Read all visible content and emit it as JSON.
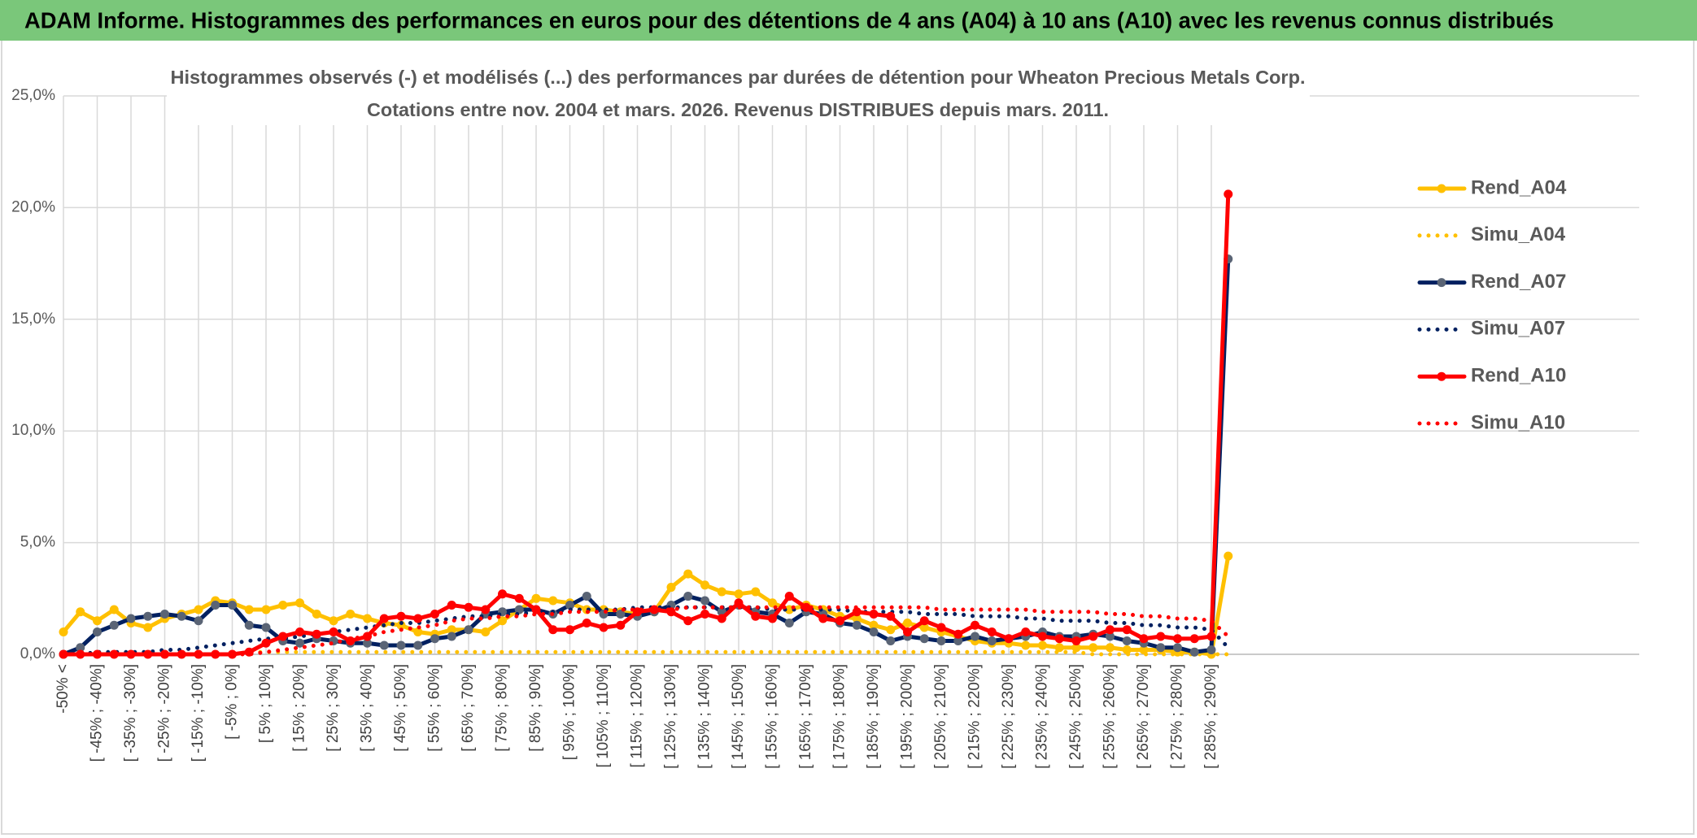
{
  "chart_data": {
    "type": "line",
    "title": "ADAM Informe. Histogrammes des performances en euros pour des détentions de 4 ans (A04) à 10 ans (A10) avec les revenus connus distribués",
    "subtitle": [
      "Histogrammes observés (-) et modélisés (...) des performances par durées de détention pour Wheaton Precious Metals Corp.",
      "Cotations entre nov. 2004 et mars. 2026. Revenus DISTRIBUES depuis mars. 2011."
    ],
    "categories": [
      "-50% <",
      null,
      "[ -45% ; -40%]",
      null,
      "[ -35% ; -30%]",
      null,
      "[ -25% ; -20%]",
      null,
      "[ -15% ; -10%]",
      null,
      "[ -5% ; 0%]",
      null,
      "[ 5% ; 10%]",
      null,
      "[ 15% ; 20%]",
      null,
      "[ 25% ; 30%]",
      null,
      "[ 35% ; 40%]",
      null,
      "[ 45% ; 50%]",
      null,
      "[ 55% ; 60%]",
      null,
      "[ 65% ; 70%]",
      null,
      "[ 75% ; 80%]",
      null,
      "[ 85% ; 90%]",
      null,
      "[ 95% ; 100%]",
      null,
      "[ 105% ; 110%]",
      null,
      "[ 115% ; 120%]",
      null,
      "[ 125% ; 130%]",
      null,
      "[ 135% ; 140%]",
      null,
      "[ 145% ; 150%]",
      null,
      "[ 155% ; 160%]",
      null,
      "[ 165% ; 170%]",
      null,
      "[ 175% ; 180%]",
      null,
      "[ 185% ; 190%]",
      null,
      "[ 195% ; 200%]",
      null,
      "[ 205% ; 210%]",
      null,
      "[ 215% ; 220%]",
      null,
      "[ 225% ; 230%]",
      null,
      "[ 235% ; 240%]",
      null,
      "[ 245% ; 250%]",
      null,
      "[ 255% ; 260%]",
      null,
      "[ 265% ; 270%]",
      null,
      "[ 275% ; 280%]",
      null,
      "[ 285% ; 290%]",
      null
    ],
    "series": [
      {
        "name": "Rend_A04",
        "color": "#ffc000",
        "style": "solid",
        "marker_color": "#ffc000",
        "values": [
          1.0,
          1.9,
          1.5,
          2.0,
          1.4,
          1.2,
          1.6,
          1.8,
          2.0,
          2.4,
          2.3,
          2.0,
          2.0,
          2.2,
          2.3,
          1.8,
          1.5,
          1.8,
          1.6,
          1.4,
          1.3,
          1.0,
          0.9,
          1.1,
          1.1,
          1.0,
          1.5,
          2.0,
          2.5,
          2.4,
          2.3,
          2.0,
          2.0,
          1.9,
          1.8,
          1.9,
          3.0,
          3.6,
          3.1,
          2.8,
          2.7,
          2.8,
          2.3,
          2.0,
          2.2,
          2.0,
          1.7,
          1.6,
          1.3,
          1.1,
          1.4,
          1.2,
          1.0,
          0.8,
          0.6,
          0.5,
          0.5,
          0.4,
          0.4,
          0.3,
          0.3,
          0.3,
          0.3,
          0.2,
          0.2,
          0.2,
          0.1,
          0.1,
          0.0,
          4.4
        ]
      },
      {
        "name": "Simu_A04",
        "color": "#ffc000",
        "style": "dotted",
        "values": [
          0,
          0,
          0,
          0,
          0,
          0,
          0,
          0,
          0,
          0,
          0,
          0.1,
          0.1,
          0.1,
          0.1,
          0.1,
          0.1,
          0.1,
          0.1,
          0.1,
          0.1,
          0.1,
          0.1,
          0.1,
          0.1,
          0.1,
          0.1,
          0.1,
          0.1,
          0.1,
          0.1,
          0.1,
          0.1,
          0.1,
          0.1,
          0.1,
          0.1,
          0.1,
          0.1,
          0.1,
          0.1,
          0.1,
          0.1,
          0.1,
          0.1,
          0.1,
          0.1,
          0.1,
          0.1,
          0.1,
          0.1,
          0.1,
          0.1,
          0.1,
          0.1,
          0.1,
          0.1,
          0.1,
          0.1,
          0.1,
          0.1,
          0,
          0,
          0,
          0,
          0,
          0,
          0,
          0,
          0
        ]
      },
      {
        "name": "Rend_A07",
        "color": "#002060",
        "style": "solid",
        "marker_color": "#5a6475",
        "values": [
          0.0,
          0.3,
          1.0,
          1.3,
          1.6,
          1.7,
          1.8,
          1.7,
          1.5,
          2.2,
          2.2,
          1.3,
          1.2,
          0.6,
          0.5,
          0.7,
          0.6,
          0.5,
          0.5,
          0.4,
          0.4,
          0.4,
          0.7,
          0.8,
          1.1,
          1.8,
          1.9,
          2.0,
          2.0,
          1.8,
          2.2,
          2.6,
          1.8,
          1.8,
          1.7,
          1.9,
          2.2,
          2.6,
          2.4,
          1.9,
          2.2,
          1.9,
          1.8,
          1.4,
          1.9,
          1.8,
          1.4,
          1.3,
          1.0,
          0.6,
          0.8,
          0.7,
          0.6,
          0.6,
          0.8,
          0.6,
          0.7,
          0.8,
          1.0,
          0.8,
          0.8,
          0.9,
          0.8,
          0.6,
          0.5,
          0.3,
          0.3,
          0.1,
          0.2,
          17.7
        ]
      },
      {
        "name": "Simu_A07",
        "color": "#002060",
        "style": "dotted",
        "values": [
          0,
          0,
          0.1,
          0.1,
          0.1,
          0.1,
          0.2,
          0.2,
          0.3,
          0.4,
          0.5,
          0.6,
          0.7,
          0.7,
          0.8,
          0.9,
          1.0,
          1.1,
          1.2,
          1.3,
          1.4,
          1.4,
          1.5,
          1.6,
          1.7,
          1.7,
          1.8,
          1.8,
          1.9,
          1.9,
          2.0,
          2.0,
          2.0,
          2.0,
          2.1,
          2.1,
          2.1,
          2.1,
          2.1,
          2.1,
          2.1,
          2.1,
          2.0,
          2.0,
          2.0,
          2.0,
          2.0,
          1.9,
          1.9,
          1.9,
          1.9,
          1.8,
          1.8,
          1.8,
          1.7,
          1.7,
          1.7,
          1.6,
          1.6,
          1.5,
          1.5,
          1.5,
          1.4,
          1.4,
          1.3,
          1.3,
          1.2,
          1.2,
          1.1,
          0.3
        ]
      },
      {
        "name": "Rend_A10",
        "color": "#ff0000",
        "style": "solid",
        "marker_color": "#ff0000",
        "values": [
          0,
          0,
          0,
          0,
          0,
          0,
          0,
          0,
          0,
          0,
          0,
          0.1,
          0.5,
          0.8,
          1.0,
          0.9,
          1.0,
          0.6,
          0.8,
          1.6,
          1.7,
          1.6,
          1.8,
          2.2,
          2.1,
          2.0,
          2.7,
          2.5,
          2.0,
          1.1,
          1.1,
          1.4,
          1.2,
          1.3,
          1.9,
          2.0,
          1.9,
          1.5,
          1.8,
          1.6,
          2.3,
          1.7,
          1.6,
          2.6,
          2.1,
          1.6,
          1.5,
          1.9,
          1.8,
          1.7,
          1.0,
          1.5,
          1.2,
          0.9,
          1.3,
          1.0,
          0.7,
          1.0,
          0.8,
          0.7,
          0.6,
          0.8,
          1.1,
          1.1,
          0.7,
          0.8,
          0.7,
          0.7,
          0.8,
          20.6
        ]
      },
      {
        "name": "Simu_A10",
        "color": "#ff0000",
        "style": "dotted",
        "values": [
          0,
          0,
          0,
          0,
          0,
          0,
          0,
          0,
          0,
          0,
          0,
          0,
          0.1,
          0.2,
          0.3,
          0.4,
          0.5,
          0.7,
          0.8,
          1.0,
          1.1,
          1.2,
          1.3,
          1.5,
          1.6,
          1.6,
          1.7,
          1.7,
          1.8,
          1.8,
          1.9,
          1.9,
          1.9,
          2.0,
          2.0,
          2.0,
          2.0,
          2.1,
          2.1,
          2.1,
          2.1,
          2.1,
          2.1,
          2.1,
          2.1,
          2.1,
          2.1,
          2.1,
          2.1,
          2.1,
          2.1,
          2.1,
          2.0,
          2.0,
          2.0,
          2.0,
          2.0,
          2.0,
          1.9,
          1.9,
          1.9,
          1.9,
          1.8,
          1.8,
          1.7,
          1.7,
          1.6,
          1.6,
          1.5,
          0.8
        ]
      }
    ],
    "ylim": [
      0,
      25
    ],
    "yticks": [
      {
        "value": 0,
        "label": "0,0%"
      },
      {
        "value": 5,
        "label": "5,0%"
      },
      {
        "value": 10,
        "label": "10,0%"
      },
      {
        "value": 15,
        "label": "15,0%"
      },
      {
        "value": 20,
        "label": "20,0%"
      },
      {
        "value": 25,
        "label": "25,0%"
      }
    ],
    "grid": true,
    "legend": "right"
  }
}
